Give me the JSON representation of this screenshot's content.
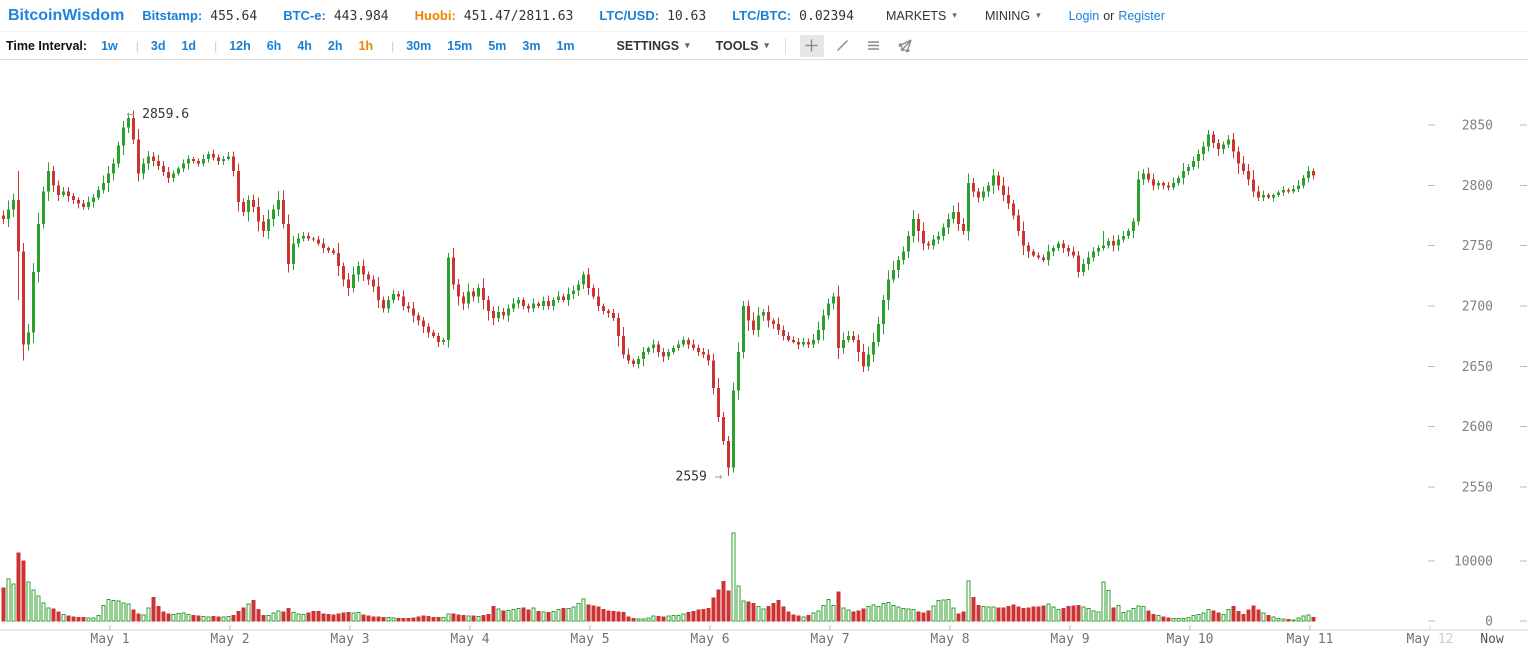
{
  "theme": {
    "logo_blue": "#1e82e2",
    "link_blue": "#1a7fd6",
    "orange": "#f08200",
    "up_green": "#2CA02C",
    "down_red": "#CC3333"
  },
  "header": {
    "logo": "BitcoinWisdom",
    "tickers": [
      {
        "label": "Bitstamp:",
        "value": "455.64",
        "color": "#1a7fd6"
      },
      {
        "label": "BTC-e:",
        "value": "443.984",
        "color": "#1a7fd6"
      },
      {
        "label": "Huobi:",
        "value": "451.47/2811.63",
        "color": "#f08200"
      },
      {
        "label": "LTC/USD:",
        "value": "10.63",
        "color": "#1a7fd6"
      },
      {
        "label": "LTC/BTC:",
        "value": "0.02394",
        "color": "#1a7fd6"
      }
    ],
    "menus": [
      {
        "label": "MARKETS"
      },
      {
        "label": "MINING"
      }
    ],
    "auth": {
      "login": "Login",
      "or": "or",
      "register": "Register"
    }
  },
  "toolbar": {
    "interval_label": "Time Interval:",
    "interval_groups": [
      [
        "1w"
      ],
      [
        "3d",
        "1d"
      ],
      [
        "12h",
        "6h",
        "4h",
        "2h",
        "1h"
      ],
      [
        "30m",
        "15m",
        "5m",
        "3m",
        "1m"
      ]
    ],
    "selected_interval": "1h",
    "settings_label": "SETTINGS",
    "tools_label": "TOOLS",
    "tools": [
      {
        "name": "crosshair",
        "active": true
      },
      {
        "name": "trendline",
        "active": false
      },
      {
        "name": "horizontal-lines",
        "active": false
      },
      {
        "name": "fib-fan",
        "active": false
      }
    ]
  },
  "chart_data": {
    "type": "candlestick+volume",
    "interval": "1h",
    "price_axis": {
      "ticks": [
        2850,
        2800,
        2750,
        2700,
        2650,
        2600,
        2550
      ],
      "ylim": [
        2540,
        2865
      ]
    },
    "volume_axis": {
      "ticks": [
        10000,
        0
      ],
      "ylim": [
        0,
        15000
      ]
    },
    "x_labels": [
      "May 1",
      "May 2",
      "May 3",
      "May 4",
      "May 5",
      "May 6",
      "May 7",
      "May 8",
      "May 9",
      "May 10",
      "May 11"
    ],
    "x_label_future": {
      "prefix": "May ",
      "muted": "12"
    },
    "x_label_now": "Now",
    "high_annotation": {
      "label": "2859.6",
      "index": 25,
      "price": 2859.6,
      "arrow": "left"
    },
    "low_annotation": {
      "label": "2559",
      "index": 145,
      "price": 2559,
      "arrow": "right"
    },
    "colors": {
      "up": "#2CA02C",
      "down": "#CC3333",
      "axis_text": "#808080",
      "date_text": "#737373",
      "muted": "#cccccc",
      "tick": "#bbbbbb",
      "axis_line": "#cfcfcf"
    },
    "closes": [
      2772,
      2780,
      2788,
      2745,
      2668,
      2678,
      2728,
      2768,
      2795,
      2812,
      2800,
      2792,
      2795,
      2791,
      2788,
      2785,
      2782,
      2786,
      2790,
      2796,
      2802,
      2810,
      2818,
      2833,
      2848,
      2856,
      2838,
      2810,
      2818,
      2824,
      2820,
      2816,
      2811,
      2806,
      2810,
      2814,
      2818,
      2822,
      2820,
      2818,
      2822,
      2826,
      2823,
      2820,
      2822,
      2824,
      2812,
      2786,
      2778,
      2788,
      2782,
      2770,
      2762,
      2772,
      2780,
      2788,
      2768,
      2735,
      2752,
      2756,
      2758,
      2756,
      2755,
      2752,
      2748,
      2746,
      2744,
      2733,
      2722,
      2715,
      2726,
      2733,
      2726,
      2722,
      2716,
      2705,
      2698,
      2705,
      2710,
      2708,
      2700,
      2698,
      2692,
      2688,
      2683,
      2678,
      2675,
      2670,
      2672,
      2740,
      2718,
      2708,
      2702,
      2712,
      2708,
      2715,
      2705,
      2696,
      2690,
      2695,
      2692,
      2698,
      2702,
      2705,
      2700,
      2698,
      2702,
      2700,
      2704,
      2700,
      2705,
      2708,
      2705,
      2710,
      2713,
      2718,
      2726,
      2715,
      2708,
      2700,
      2696,
      2694,
      2690,
      2675,
      2660,
      2655,
      2652,
      2656,
      2662,
      2665,
      2668,
      2662,
      2658,
      2662,
      2665,
      2668,
      2672,
      2668,
      2665,
      2662,
      2660,
      2655,
      2632,
      2608,
      2588,
      2566,
      2630,
      2662,
      2700,
      2688,
      2680,
      2692,
      2695,
      2688,
      2685,
      2680,
      2675,
      2672,
      2670,
      2668,
      2670,
      2668,
      2672,
      2680,
      2692,
      2702,
      2708,
      2665,
      2672,
      2675,
      2672,
      2662,
      2650,
      2660,
      2670,
      2685,
      2705,
      2722,
      2730,
      2738,
      2745,
      2758,
      2772,
      2762,
      2752,
      2750,
      2755,
      2758,
      2765,
      2772,
      2778,
      2768,
      2762,
      2802,
      2795,
      2790,
      2795,
      2800,
      2808,
      2800,
      2792,
      2785,
      2775,
      2762,
      2750,
      2745,
      2742,
      2740,
      2738,
      2745,
      2748,
      2752,
      2748,
      2745,
      2742,
      2728,
      2735,
      2740,
      2745,
      2748,
      2750,
      2754,
      2750,
      2755,
      2758,
      2762,
      2770,
      2805,
      2810,
      2805,
      2800,
      2802,
      2800,
      2798,
      2802,
      2806,
      2812,
      2815,
      2820,
      2826,
      2832,
      2842,
      2835,
      2830,
      2834,
      2838,
      2828,
      2818,
      2812,
      2805,
      2795,
      2790,
      2792,
      2790,
      2792,
      2794,
      2796,
      2795,
      2797,
      2800,
      2806,
      2812,
      2808
    ],
    "volumes": [
      5500,
      7000,
      6200,
      11300,
      10000,
      6500,
      5200,
      4200,
      3000,
      2200,
      2000,
      1500,
      1100,
      850,
      700,
      620,
      560,
      520,
      540,
      900,
      2600,
      3600,
      3400,
      3300,
      3000,
      2800,
      1800,
      1200,
      1000,
      2200,
      3900,
      2400,
      1500,
      1200,
      1100,
      1250,
      1300,
      1100,
      950,
      820,
      780,
      700,
      720,
      690,
      700,
      750,
      900,
      1600,
      2200,
      2800,
      3400,
      1900,
      950,
      880,
      1300,
      1700,
      1500,
      2100,
      1400,
      1150,
      1100,
      1300,
      1600,
      1550,
      1200,
      1050,
      1000,
      1150,
      1300,
      1400,
      1350,
      1400,
      1000,
      850,
      700,
      680,
      600,
      550,
      500,
      450,
      400,
      430,
      520,
      640,
      800,
      720,
      600,
      560,
      620,
      1150,
      1200,
      1000,
      900,
      850,
      800,
      760,
      900,
      1100,
      2400,
      2000,
      1700,
      1750,
      1900,
      2050,
      2200,
      1800,
      2200,
      1600,
      1500,
      1400,
      1600,
      1900,
      2100,
      2060,
      2300,
      2900,
      3700,
      2700,
      2500,
      2300,
      1900,
      1700,
      1550,
      1500,
      1450,
      700,
      400,
      300,
      350,
      500,
      800,
      750,
      700,
      820,
      900,
      920,
      1200,
      1400,
      1600,
      1800,
      1900,
      2100,
      3800,
      5200,
      6600,
      5000,
      14700,
      5800,
      3300,
      3200,
      2900,
      2400,
      2000,
      2400,
      2900,
      3400,
      2300,
      1500,
      1000,
      850,
      700,
      900,
      1300,
      1700,
      2600,
      3600,
      2600,
      4800,
      2200,
      1800,
      1500,
      1700,
      2000,
      2400,
      2700,
      2400,
      2900,
      3100,
      2600,
      2300,
      2100,
      2000,
      1900,
      1500,
      1300,
      1700,
      2500,
      3400,
      3500,
      3600,
      2200,
      1200,
      1500,
      6700,
      3900,
      2600,
      2400,
      2300,
      2300,
      2200,
      2200,
      2400,
      2700,
      2300,
      2100,
      2200,
      2300,
      2300,
      2500,
      2800,
      2300,
      1900,
      2100,
      2400,
      2500,
      2600,
      2300,
      2100,
      1700,
      1500,
      6500,
      5100,
      2200,
      2600,
      1400,
      1700,
      2100,
      2500,
      2400,
      1700,
      1100,
      900,
      700,
      500,
      450,
      400,
      420,
      600,
      900,
      1100,
      1300,
      1900,
      1700,
      1300,
      1100,
      1900,
      2400,
      1600,
      1100,
      1800,
      2500,
      1800,
      1300,
      900,
      700,
      450,
      300,
      250,
      200,
      500,
      800,
      1000,
      600
    ],
    "wick_overrides": {
      "3": {
        "low": 2705,
        "high": 2812
      },
      "4": {
        "low": 2655
      },
      "25": {
        "high": 2859.6
      },
      "89": {
        "high": 2744
      },
      "145": {
        "low": 2559
      },
      "146": {
        "low": 2562
      },
      "193": {
        "high": 2810
      },
      "220": {
        "high": 2762
      },
      "227": {
        "high": 2812
      },
      "241": {
        "high": 2846
      }
    }
  }
}
